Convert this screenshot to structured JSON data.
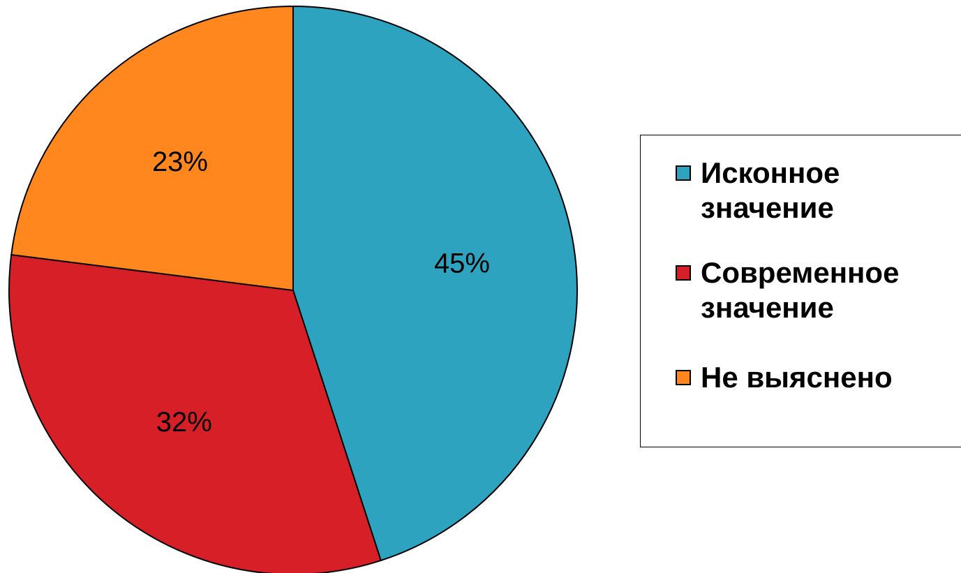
{
  "chart_data": {
    "type": "pie",
    "title": "",
    "start_angle_deg": 0,
    "direction": "clockwise",
    "slices": [
      {
        "label": "Исконное\nзначение",
        "value": 45,
        "display": "45%",
        "color": "#2ea3c0"
      },
      {
        "label": "Современное\nзначение",
        "value": 32,
        "display": "32%",
        "color": "#d71f28"
      },
      {
        "label": "Не выяснено",
        "value": 23,
        "display": "23%",
        "color": "#ff871e"
      }
    ],
    "legend": {
      "position": "right"
    }
  }
}
